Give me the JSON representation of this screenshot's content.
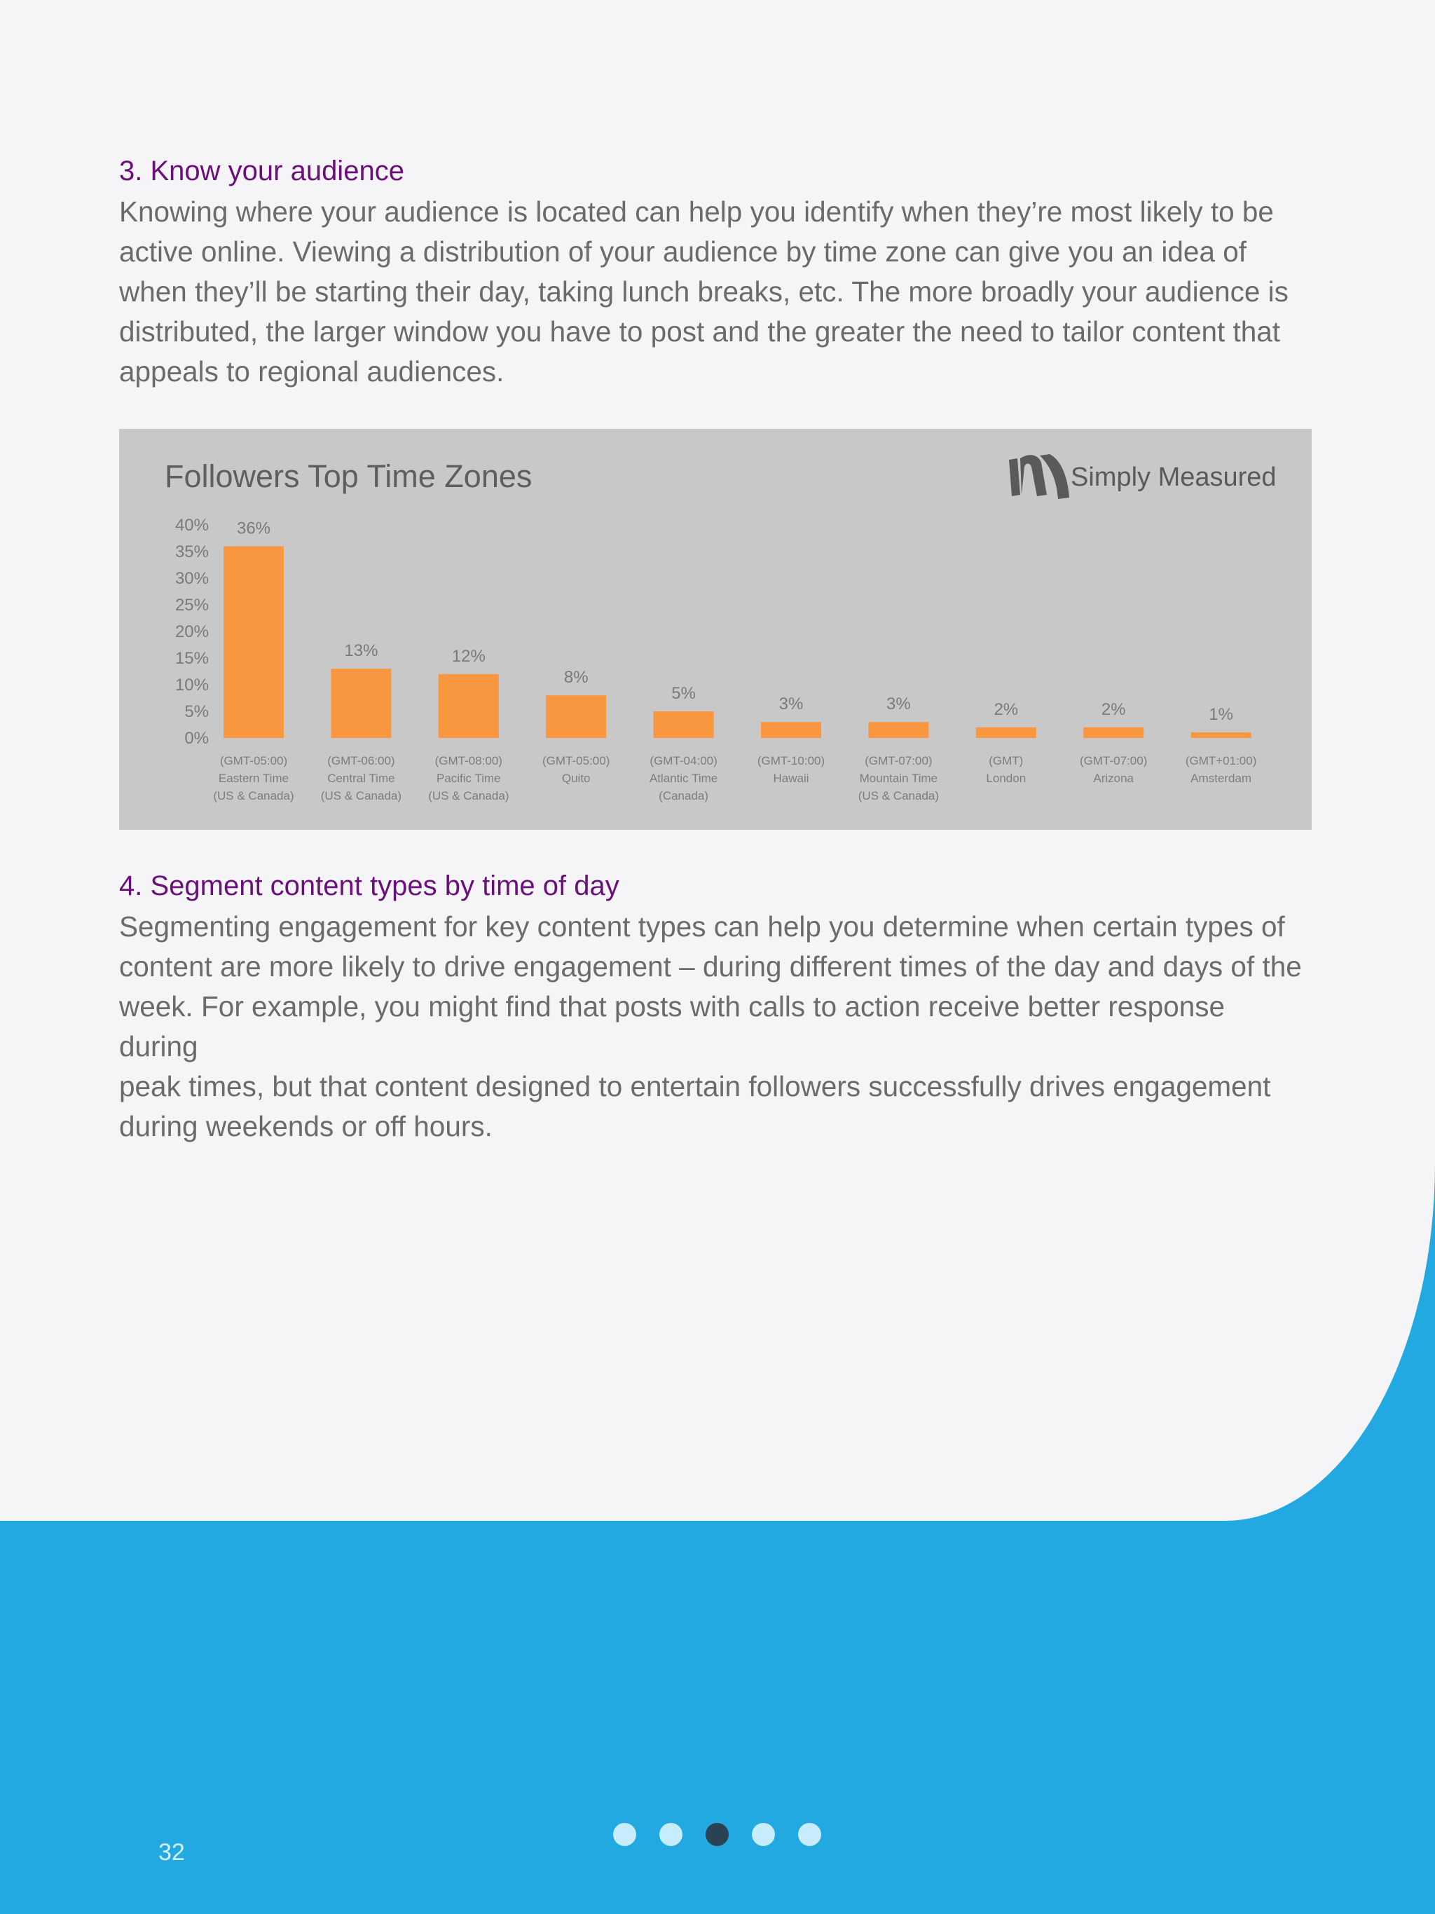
{
  "section3": {
    "heading": "3. Know your audience",
    "lines": [
      "Knowing where your audience is located can help you identify when they’re most likely to be",
      "active online. Viewing a distribution of your audience by time zone can give you an idea of",
      "when they’ll be starting their day, taking lunch breaks, etc. The more broadly your audience is",
      "distributed, the larger window you have to post and the greater the need to tailor content that",
      "appeals to regional audiences."
    ]
  },
  "chart_panel": {
    "brand": "Simply Measured",
    "icons": {
      "brand_logo": "simply-measured-logo-icon"
    }
  },
  "chart_data": {
    "type": "bar",
    "title": "Followers Top Time Zones",
    "xlabel": "",
    "ylabel": "",
    "ylim": [
      0,
      40
    ],
    "yticks": [
      "0%",
      "5%",
      "10%",
      "15%",
      "20%",
      "25%",
      "30%",
      "35%",
      "40%"
    ],
    "grid": false,
    "bar_color": "#f99640",
    "categories": [
      [
        "(GMT-05:00)",
        "Eastern Time",
        "(US & Canada)"
      ],
      [
        "(GMT-06:00)",
        "Central Time",
        "(US & Canada)"
      ],
      [
        "(GMT-08:00)",
        "Pacific Time",
        "(US & Canada)"
      ],
      [
        "(GMT-05:00)",
        "Quito"
      ],
      [
        "(GMT-04:00)",
        "Atlantic Time",
        "(Canada)"
      ],
      [
        "(GMT-10:00)",
        "Hawaii"
      ],
      [
        "(GMT-07:00)",
        "Mountain Time",
        "(US & Canada)"
      ],
      [
        "(GMT)",
        "London"
      ],
      [
        "(GMT-07:00)",
        "Arizona"
      ],
      [
        "(GMT+01:00)",
        "Amsterdam"
      ]
    ],
    "values": [
      36,
      13,
      12,
      8,
      5,
      3,
      3,
      2,
      2,
      1
    ],
    "value_labels": [
      "36%",
      "13%",
      "12%",
      "8%",
      "5%",
      "3%",
      "3%",
      "2%",
      "2%",
      "1%"
    ]
  },
  "section4": {
    "heading": "4. Segment content types by time of day",
    "lines": [
      "Segmenting engagement for key content types can help you determine when certain types of",
      "content are more likely to drive engagement – during different times of the day and days of the",
      "week. For example, you might find that posts with calls to action receive better response during",
      "peak times, but that content designed to entertain followers successfully drives engagement",
      "during weekends or off hours."
    ]
  },
  "footer": {
    "page_number": "32",
    "pager": {
      "count": 5,
      "active_index": 2
    },
    "colors": {
      "band": "#23a9e1",
      "dot": "#c7ecfb",
      "dot_active": "#2b4255"
    }
  }
}
